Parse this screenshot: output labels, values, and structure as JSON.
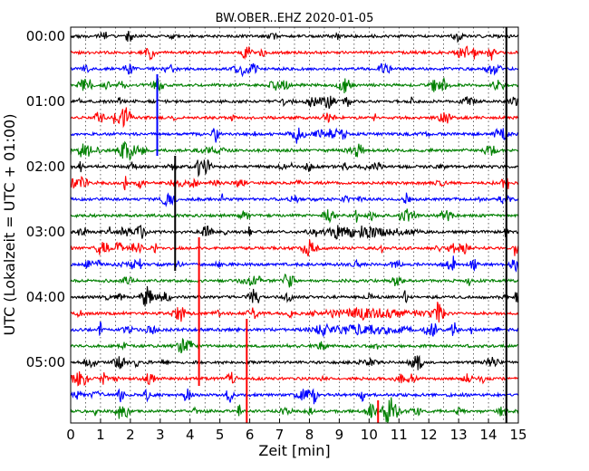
{
  "chart_data": {
    "type": "line",
    "title": "BW.OBER..EHZ 2020-01-05",
    "xlabel": "Zeit  [min]",
    "ylabel": "UTC (Lokalzeit = UTC + 01:00)",
    "xlim": [
      0,
      15
    ],
    "x_ticks": [
      "0",
      "1",
      "2",
      "3",
      "4",
      "5",
      "6",
      "7",
      "8",
      "9",
      "10",
      "11",
      "12",
      "13",
      "14",
      "15"
    ],
    "y_tick_labels": [
      "00:00",
      "01:00",
      "02:00",
      "03:00",
      "04:00",
      "05:00"
    ],
    "trace_interval_min": 15,
    "trace_count": 24,
    "vertical_gridlines": "dotted, every 0.5 min",
    "trace_colors": [
      "#000000",
      "#ff0000",
      "#0000ff",
      "#008000"
    ],
    "strong_events_min": [
      2.9,
      3.5,
      4.3,
      5.9,
      10.3,
      14.6
    ]
  }
}
